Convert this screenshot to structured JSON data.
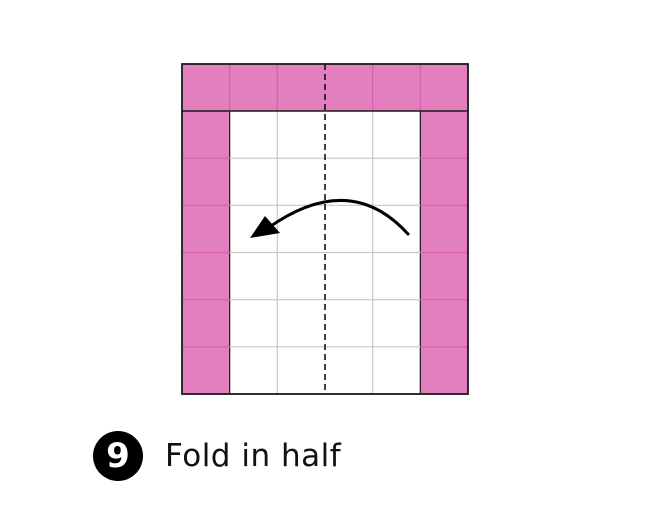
{
  "step": {
    "number": "9",
    "instruction": "Fold in half"
  },
  "colors": {
    "paper_color": "#e47fbf",
    "paper_grid_line": "#d65fa8",
    "white_grid_line": "#c3cdbf",
    "outline": "#1a1a1a",
    "fold_line": "#111111",
    "arrow": "#000000"
  },
  "diagram": {
    "grid_columns": 6,
    "grid_rows": 7,
    "colored_rows": [
      0
    ],
    "colored_columns": [
      0,
      5
    ],
    "fold_line_style": "dashed",
    "fold_line_position": "vertical-center",
    "fold_direction": "right-to-left"
  }
}
